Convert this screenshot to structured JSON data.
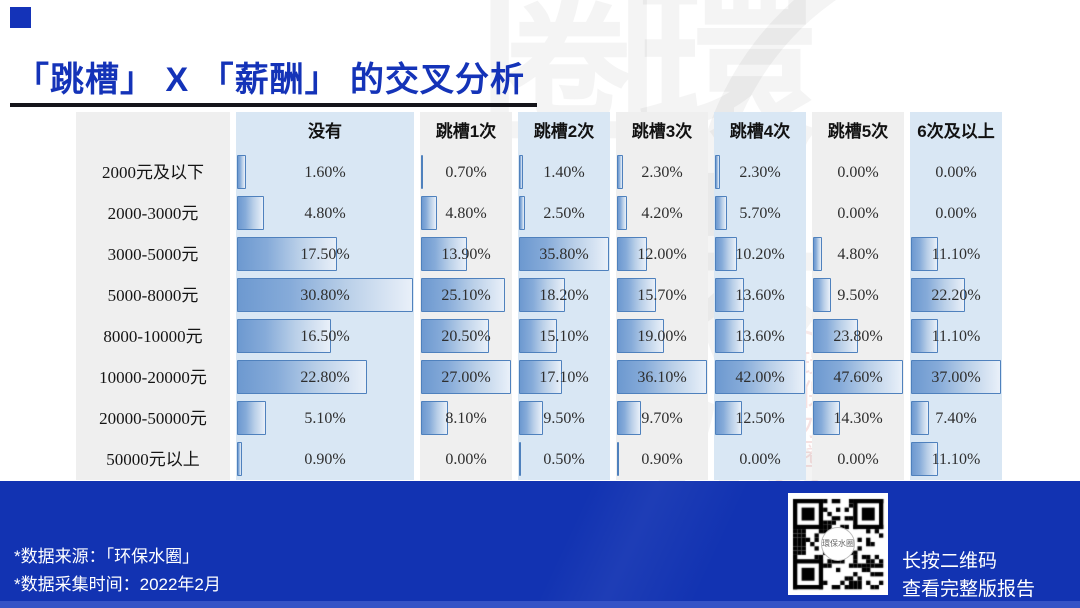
{
  "title": "「跳槽」 X 「薪酬」 的交叉分析",
  "colors": {
    "accent_blue": "#1433b8",
    "footer_blue": "#1233b2",
    "band_blue": "#d9e7f4",
    "band_gray": "#efefef",
    "bar_border": "#4f81bd",
    "bar_fill_start": "#6d99d0",
    "bar_fill_end": "#e9f0f9",
    "rule_black": "#15151a",
    "bottom_strip": "#3553c6"
  },
  "table": {
    "columns": [
      "没有",
      "跳槽1次",
      "跳槽2次",
      "跳槽3次",
      "跳槽4次",
      "跳槽5次",
      "6次及以上"
    ],
    "rows": [
      {
        "label": "2000元及以下",
        "cells": [
          "1.60%",
          "0.70%",
          "1.40%",
          "2.30%",
          "2.30%",
          "0.00%",
          "0.00%"
        ]
      },
      {
        "label": "2000-3000元",
        "cells": [
          "4.80%",
          "4.80%",
          "2.50%",
          "4.20%",
          "5.70%",
          "0.00%",
          "0.00%"
        ]
      },
      {
        "label": "3000-5000元",
        "cells": [
          "17.50%",
          "13.90%",
          "35.80%",
          "12.00%",
          "10.20%",
          "4.80%",
          "11.10%"
        ]
      },
      {
        "label": "5000-8000元",
        "cells": [
          "30.80%",
          "25.10%",
          "18.20%",
          "15.70%",
          "13.60%",
          "9.50%",
          "22.20%"
        ]
      },
      {
        "label": "8000-10000元",
        "cells": [
          "16.50%",
          "20.50%",
          "15.10%",
          "19.00%",
          "13.60%",
          "23.80%",
          "11.10%"
        ]
      },
      {
        "label": "10000-20000元",
        "cells": [
          "22.80%",
          "27.00%",
          "17.10%",
          "36.10%",
          "42.00%",
          "47.60%",
          "37.00%"
        ]
      },
      {
        "label": "20000-50000元",
        "cells": [
          "5.10%",
          "8.10%",
          "9.50%",
          "9.70%",
          "12.50%",
          "14.30%",
          "7.40%"
        ]
      },
      {
        "label": "50000元以上",
        "cells": [
          "0.90%",
          "0.00%",
          "0.50%",
          "0.90%",
          "0.00%",
          "0.00%",
          "11.10%"
        ]
      }
    ]
  },
  "footer": {
    "source_line": "*数据来源：「环保水圈」",
    "time_line": "*数据采集时间：2022年2月",
    "qr_caption_line1": "长按二维码",
    "qr_caption_line2": "查看完整版报告"
  },
  "watermark": {
    "text": "環保水圈"
  },
  "chart_data": {
    "type": "bar",
    "orientation": "horizontal",
    "title": "「跳槽」X「薪酬」的交叉分析",
    "unit": "%",
    "categories": [
      "2000元及以下",
      "2000-3000元",
      "3000-5000元",
      "5000-8000元",
      "8000-10000元",
      "10000-20000元",
      "20000-50000元",
      "50000元以上"
    ],
    "series": [
      {
        "name": "没有",
        "values": [
          1.6,
          4.8,
          17.5,
          30.8,
          16.5,
          22.8,
          5.1,
          0.9
        ]
      },
      {
        "name": "跳槽1次",
        "values": [
          0.7,
          4.8,
          13.9,
          25.1,
          20.5,
          27.0,
          8.1,
          0.0
        ]
      },
      {
        "name": "跳槽2次",
        "values": [
          1.4,
          2.5,
          35.8,
          18.2,
          15.1,
          17.1,
          9.5,
          0.5
        ]
      },
      {
        "name": "跳槽3次",
        "values": [
          2.3,
          4.2,
          12.0,
          15.7,
          19.0,
          36.1,
          9.7,
          0.9
        ]
      },
      {
        "name": "跳槽4次",
        "values": [
          2.3,
          5.7,
          10.2,
          13.6,
          13.6,
          42.0,
          12.5,
          0.0
        ]
      },
      {
        "name": "跳槽5次",
        "values": [
          0.0,
          0.0,
          4.8,
          9.5,
          23.8,
          47.6,
          14.3,
          0.0
        ]
      },
      {
        "name": "6次及以上",
        "values": [
          0.0,
          0.0,
          11.1,
          22.2,
          11.1,
          37.0,
          7.4,
          11.1
        ]
      }
    ],
    "layout_hints": {
      "bars_normalized_per_column": true,
      "value_labels_shown": true,
      "grid": false,
      "legend": "column headers"
    }
  }
}
